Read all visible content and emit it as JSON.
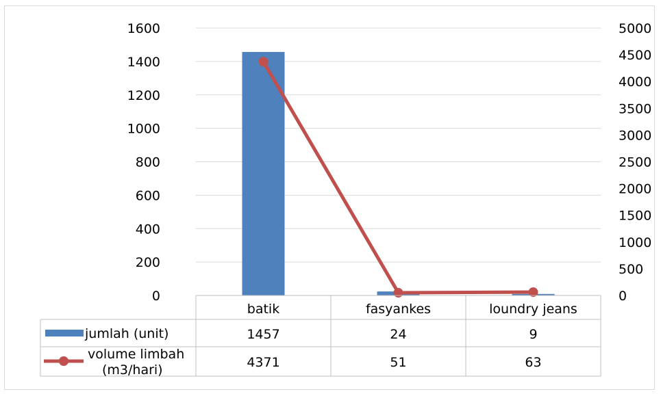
{
  "chart_data": {
    "type": "bar",
    "categories": [
      "batik",
      "fasyankes",
      "loundry jeans"
    ],
    "series": [
      {
        "name": "jumlah (unit)",
        "type": "bar",
        "axis": "left",
        "values": [
          1457,
          24,
          9
        ],
        "color": "#4F81BD"
      },
      {
        "name_lines": [
          "volume limbah",
          "(m3/hari)"
        ],
        "type": "line",
        "axis": "right",
        "values": [
          4371,
          51,
          63
        ],
        "color": "#C0504D"
      }
    ],
    "y_left": {
      "ylim": [
        0,
        1600
      ],
      "ticks": [
        "0",
        "200",
        "400",
        "600",
        "800",
        "1000",
        "1200",
        "1400",
        "1600"
      ]
    },
    "y_right": {
      "ylim": [
        0,
        5000
      ],
      "ticks": [
        "0",
        "500",
        "1000",
        "1500",
        "2000",
        "2500",
        "3000",
        "3500",
        "4000",
        "4500",
        "5000"
      ]
    },
    "grid": true,
    "legend": "data-table"
  }
}
